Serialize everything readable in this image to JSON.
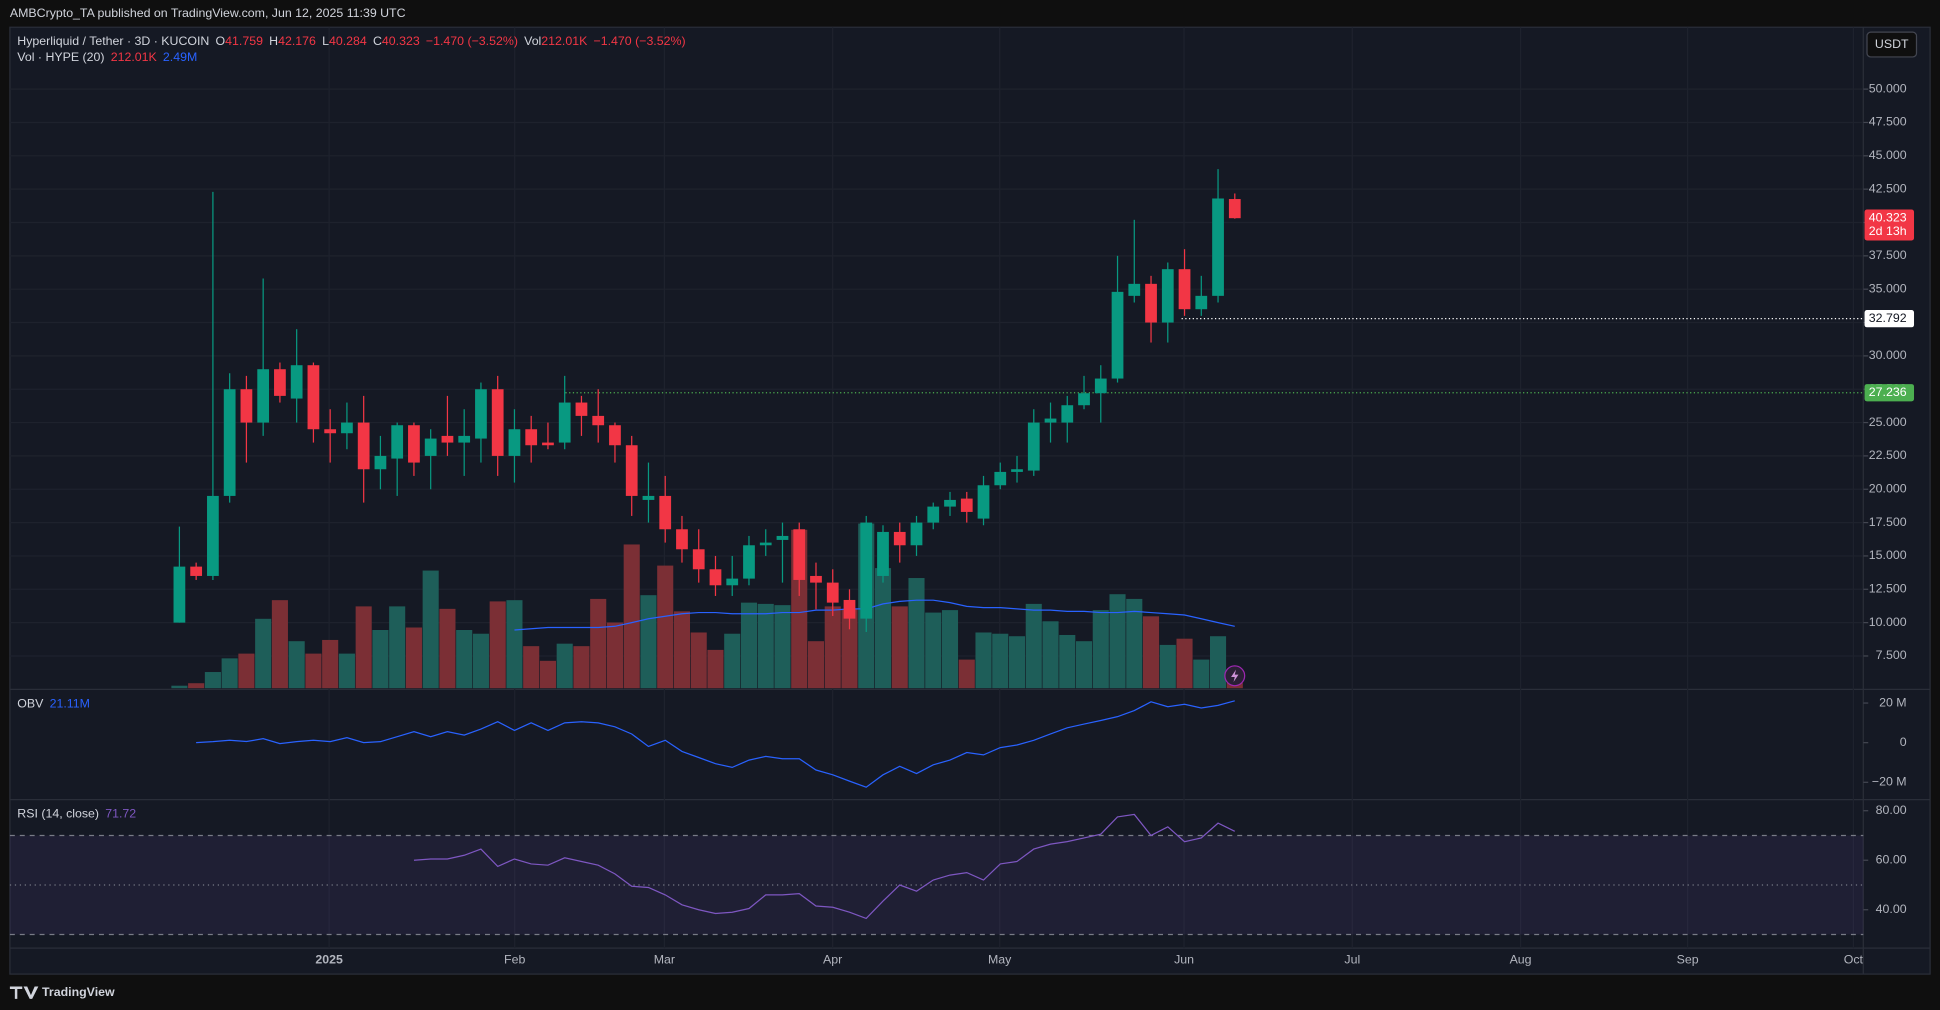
{
  "header": {
    "publisher": "AMBCrypto_TA published on TradingView.com, Jun 12, 2025 11:39 UTC",
    "brand": "TradingView"
  },
  "chart_data": {
    "type": "candlestick",
    "title": "Hyperliquid / Tether · 3D · KUCOIN",
    "ohlc_letters": [
      "O",
      "H",
      "L",
      "C"
    ],
    "vol_prefix": "Vol",
    "change_label": "−1.470 (−3.52%)",
    "currency": "USDT",
    "up_color": "#089981",
    "down_color": "#f23645",
    "open": [
      10,
      14.2,
      13.5,
      19.5,
      27.5,
      25,
      29,
      26.8,
      29.3,
      24.5,
      24.2,
      25,
      21.5,
      22.3,
      24.8,
      22.5,
      24,
      23.5,
      23.8,
      27.5,
      22.5,
      24.5,
      23.5,
      23.5,
      26.5,
      25.5,
      24.8,
      23.3,
      19.2,
      19.5,
      17,
      15.5,
      14,
      12.8,
      13.3,
      15.8,
      16.2,
      17,
      13.5,
      13,
      11.7,
      10.3,
      13.5,
      16.8,
      15.8,
      17.5,
      18.7,
      19.3,
      17.8,
      20.3,
      21.3,
      21.4,
      25,
      25,
      26.3,
      27.2,
      28.3,
      34.5,
      35.4,
      32.5,
      36.5,
      33.5,
      34.5,
      41.759
    ],
    "high": [
      17.2,
      14.5,
      42.3,
      28.7,
      28.5,
      35.8,
      29.5,
      32,
      29.5,
      26,
      26.5,
      27,
      24,
      25,
      25,
      24.5,
      27,
      26,
      28,
      28.5,
      26,
      25.5,
      25,
      28.5,
      27,
      27.5,
      25,
      24,
      22,
      21,
      18,
      17,
      15,
      15,
      16.5,
      17,
      17.5,
      17.5,
      14.5,
      14,
      12.5,
      18,
      17.3,
      17.5,
      18,
      19,
      19.8,
      19.8,
      21,
      22,
      22.5,
      26,
      26.5,
      27,
      28.5,
      29.3,
      37.5,
      40.2,
      36,
      37,
      38,
      36,
      44,
      42.176
    ],
    "low": [
      10,
      13.2,
      13.2,
      19,
      22,
      24,
      26.5,
      25,
      23.5,
      22,
      23,
      19,
      20,
      19.5,
      21,
      20,
      22.5,
      21,
      22,
      21,
      20.5,
      22,
      23,
      23,
      24,
      23.5,
      22,
      18,
      17.5,
      16,
      14.5,
      13,
      12,
      12,
      12.8,
      15,
      13,
      12,
      11,
      10.5,
      9.5,
      9.3,
      13,
      14.5,
      15,
      17,
      18,
      17.5,
      17.3,
      20,
      20.5,
      21,
      23.5,
      23.5,
      26,
      25,
      28,
      34,
      31,
      31,
      33,
      33,
      34,
      40.284
    ],
    "close": [
      14.2,
      13.5,
      19.5,
      27.5,
      25,
      29,
      27,
      29.3,
      24.5,
      24.2,
      25,
      21.5,
      22.5,
      24.8,
      22,
      23.8,
      23.5,
      24,
      27.5,
      22.5,
      24.5,
      23.3,
      23.3,
      26.5,
      25.5,
      24.8,
      23.3,
      19.5,
      19.5,
      17,
      15.5,
      14,
      12.8,
      13.3,
      15.8,
      16,
      16.5,
      13.2,
      13,
      11.5,
      10.3,
      17.5,
      16.8,
      15.8,
      17.5,
      18.7,
      19.2,
      18.3,
      20.3,
      21.3,
      21.5,
      25,
      25.3,
      26.3,
      27.2,
      28.3,
      34.8,
      35.4,
      32.5,
      36.5,
      33.5,
      34.5,
      41.8,
      40.323
    ],
    "ylim": [
      5.085,
      54.64
    ],
    "yticks": [
      {
        "value": 7.5,
        "label": "7.500"
      },
      {
        "value": 10,
        "label": "10.000"
      },
      {
        "value": 12.5,
        "label": "12.500"
      },
      {
        "value": 15,
        "label": "15.000"
      },
      {
        "value": 17.5,
        "label": "17.500"
      },
      {
        "value": 20,
        "label": "20.000"
      },
      {
        "value": 22.5,
        "label": "22.500"
      },
      {
        "value": 25,
        "label": "25.000"
      },
      {
        "value": 27.5,
        "label": "27.500"
      },
      {
        "value": 30,
        "label": "30.000"
      },
      {
        "value": 32.5,
        "label": "32.500"
      },
      {
        "value": 35,
        "label": "35.000"
      },
      {
        "value": 37.5,
        "label": "37.500"
      },
      {
        "value": 40,
        "label": "40.000"
      },
      {
        "value": 42.5,
        "label": "42.500"
      },
      {
        "value": 45,
        "label": "45.000"
      },
      {
        "value": 47.5,
        "label": "47.500"
      },
      {
        "value": 50,
        "label": "50.000"
      }
    ],
    "grid": true,
    "last_price_countdown": "2d 13h",
    "levels": [
      {
        "value": 32.792,
        "color": "#ffffff"
      },
      {
        "value": 27.236,
        "color": "#4caf50"
      }
    ],
    "x_labels": [
      "2025",
      "Feb",
      "Mar",
      "Apr",
      "May",
      "Jun",
      "Jul",
      "Aug",
      "Sep",
      "Oct"
    ],
    "volume": {
      "name": "Vol · HYPE (20)",
      "last_label": "212.01K",
      "ma_label": "2.49M",
      "ma_color": "#2962ff",
      "up_color": "#1e5e59",
      "down_color": "#7b2f35",
      "values": [
        100000,
        200000,
        650000,
        1200000,
        1390000,
        2790000,
        3540000,
        1890000,
        1390000,
        1940000,
        1390000,
        3290000,
        2340000,
        3290000,
        2440000,
        4730000,
        3190000,
        2340000,
        2190000,
        3490000,
        3540000,
        1690000,
        1100000,
        1790000,
        1690000,
        3590000,
        2640000,
        5780000,
        3740000,
        4930000,
        3090000,
        2240000,
        1540000,
        2190000,
        3440000,
        3390000,
        3340000,
        6370000,
        1890000,
        3290000,
        3190000,
        6620000,
        4830000,
        3290000,
        4430000,
        3040000,
        3140000,
        1150000,
        2240000,
        2190000,
        2090000,
        3390000,
        2690000,
        2140000,
        1890000,
        3140000,
        3780000,
        3590000,
        2890000,
        1740000,
        1990000,
        1150000,
        2090000,
        212010
      ],
      "ma_values": [
        null,
        null,
        null,
        null,
        null,
        null,
        null,
        null,
        null,
        null,
        null,
        null,
        null,
        null,
        null,
        null,
        null,
        null,
        null,
        null,
        2340000,
        2390000,
        2440000,
        2440000,
        2440000,
        2440000,
        2490000,
        2640000,
        2790000,
        2890000,
        2990000,
        3040000,
        3040000,
        2990000,
        2990000,
        2990000,
        3040000,
        3040000,
        3140000,
        3140000,
        3190000,
        3190000,
        3390000,
        3490000,
        3540000,
        3540000,
        3440000,
        3290000,
        3240000,
        3240000,
        3190000,
        3140000,
        3140000,
        3090000,
        3090000,
        3040000,
        3040000,
        3090000,
        3040000,
        2990000,
        2940000,
        2790000,
        2640000,
        2490000
      ]
    },
    "obv": {
      "name": "OBV",
      "last_label": "21.11M",
      "color": "#2962ff",
      "values": [
        null,
        0,
        500000,
        1200000,
        600000,
        2000000,
        -500000,
        500000,
        1200000,
        500000,
        2500000,
        0,
        500000,
        3000000,
        5600000,
        3000000,
        5600000,
        3800000,
        6900000,
        10600000,
        6200000,
        10000000,
        6200000,
        10000000,
        10600000,
        10000000,
        8000000,
        4400000,
        -1900000,
        1200000,
        -4400000,
        -7500000,
        -10600000,
        -12500000,
        -8800000,
        -6900000,
        -8100000,
        -8100000,
        -13800000,
        -16200000,
        -19400000,
        -22500000,
        -16200000,
        -11900000,
        -15600000,
        -11200000,
        -8800000,
        -5000000,
        -6200000,
        -2500000,
        -1200000,
        1200000,
        4400000,
        7500000,
        9400000,
        11200000,
        13100000,
        16200000,
        20600000,
        18100000,
        19400000,
        17500000,
        18800000,
        21110000
      ],
      "ylim": [
        -28100000,
        26250000
      ],
      "yticks": [
        {
          "value": 20000000,
          "label": "20 M"
        },
        0,
        {
          "value": -20000000,
          "label": "−20 M"
        }
      ]
    },
    "rsi": {
      "name": "RSI (14, close)",
      "color": "#7e57c2",
      "values": [
        null,
        null,
        null,
        null,
        null,
        null,
        null,
        null,
        null,
        null,
        null,
        null,
        null,
        null,
        60,
        60.5,
        60.5,
        62,
        64.5,
        57.5,
        60.5,
        58.5,
        58,
        61,
        59.5,
        58,
        54.5,
        49.5,
        49,
        46,
        42,
        40,
        38.5,
        39,
        40.5,
        46,
        46,
        46.5,
        41.5,
        41,
        39,
        36.5,
        43.5,
        50,
        47.5,
        52,
        54,
        55,
        52,
        58.5,
        59.5,
        64.5,
        66.5,
        67.5,
        69,
        70.5,
        77.5,
        78.5,
        70,
        73.5,
        67.5,
        69,
        75,
        71.72
      ],
      "ylim": [
        25,
        84
      ],
      "yticks": [
        {
          "value": 80,
          "label": "80.00"
        },
        {
          "value": 60,
          "label": "60.00"
        },
        {
          "value": 40,
          "label": "40.00"
        }
      ],
      "bands": [
        70,
        50,
        30
      ]
    }
  }
}
